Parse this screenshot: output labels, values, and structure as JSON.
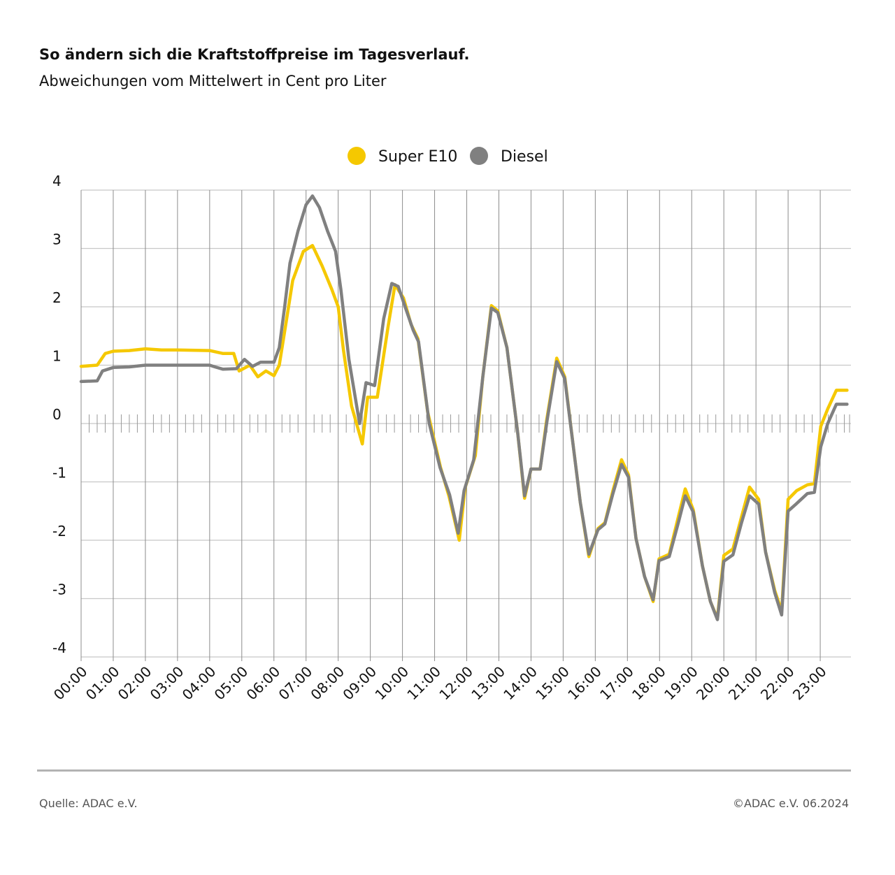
{
  "header": {
    "title": "So ändern sich die Kraftstoffpreise im Tagesverlauf.",
    "subtitle": "Abweichungen vom Mittelwert in Cent pro Liter"
  },
  "footer": {
    "source": "Quelle: ADAC e.V.",
    "copyright": "©ADAC e.V.  06.2024"
  },
  "chart_data": {
    "type": "line",
    "title": "So ändern sich die Kraftstoffpreise im Tagesverlauf.",
    "subtitle": "Abweichungen vom Mittelwert in Cent pro Liter",
    "ylim": [
      -4,
      4
    ],
    "y_ticks": [
      "4",
      "3",
      "2",
      "1",
      "0",
      "-1",
      "-2",
      "-3",
      "-4"
    ],
    "x_ticks": [
      "00:00",
      "01:00",
      "02:00",
      "03:00",
      "04:00",
      "05:00",
      "06:00",
      "07:00",
      "08:00",
      "09:00",
      "10:00",
      "11:00",
      "12:00",
      "13:00",
      "14:00",
      "15:00",
      "16:00",
      "17:00",
      "18:00",
      "19:00",
      "20:00",
      "21:00",
      "22:00",
      "23:00"
    ],
    "grid": true,
    "legend": "top-center",
    "series": [
      {
        "name": "Super E10",
        "color": "#f5c800",
        "points": [
          [
            "00:00",
            0.98
          ],
          [
            "00:30",
            1.0
          ],
          [
            "00:45",
            1.2
          ],
          [
            "01:00",
            1.24
          ],
          [
            "01:30",
            1.25
          ],
          [
            "02:00",
            1.28
          ],
          [
            "02:30",
            1.26
          ],
          [
            "03:00",
            1.26
          ],
          [
            "04:00",
            1.25
          ],
          [
            "04:25",
            1.2
          ],
          [
            "04:45",
            1.2
          ],
          [
            "04:55",
            0.9
          ],
          [
            "05:15",
            1.0
          ],
          [
            "05:30",
            0.8
          ],
          [
            "05:45",
            0.9
          ],
          [
            "06:00",
            0.82
          ],
          [
            "06:10",
            1.0
          ],
          [
            "06:23",
            1.75
          ],
          [
            "06:35",
            2.45
          ],
          [
            "06:55",
            2.95
          ],
          [
            "07:12",
            3.05
          ],
          [
            "07:30",
            2.7
          ],
          [
            "07:48",
            2.3
          ],
          [
            "08:00",
            2.0
          ],
          [
            "08:10",
            1.25
          ],
          [
            "08:25",
            0.3
          ],
          [
            "08:45",
            -0.35
          ],
          [
            "08:55",
            0.45
          ],
          [
            "09:13",
            0.45
          ],
          [
            "09:33",
            1.65
          ],
          [
            "09:46",
            2.38
          ],
          [
            "10:02",
            2.15
          ],
          [
            "10:16",
            1.7
          ],
          [
            "10:29",
            1.45
          ],
          [
            "10:47",
            0.2
          ],
          [
            "11:11",
            -0.75
          ],
          [
            "11:27",
            -1.25
          ],
          [
            "11:46",
            -2.0
          ],
          [
            "11:57",
            -1.1
          ],
          [
            "12:16",
            -0.55
          ],
          [
            "12:30",
            0.8
          ],
          [
            "12:46",
            2.02
          ],
          [
            "12:58",
            1.93
          ],
          [
            "13:15",
            1.3
          ],
          [
            "13:35",
            -0.15
          ],
          [
            "13:48",
            -1.28
          ],
          [
            "14:00",
            -0.78
          ],
          [
            "14:17",
            -0.78
          ],
          [
            "14:29",
            0.05
          ],
          [
            "14:48",
            1.12
          ],
          [
            "15:03",
            0.8
          ],
          [
            "15:19",
            -0.4
          ],
          [
            "15:32",
            -1.35
          ],
          [
            "15:48",
            -2.28
          ],
          [
            "16:05",
            -1.8
          ],
          [
            "16:18",
            -1.7
          ],
          [
            "16:33",
            -1.15
          ],
          [
            "16:49",
            -0.62
          ],
          [
            "17:02",
            -0.88
          ],
          [
            "17:16",
            -1.97
          ],
          [
            "17:32",
            -2.62
          ],
          [
            "17:48",
            -3.05
          ],
          [
            "17:59",
            -2.32
          ],
          [
            "18:18",
            -2.24
          ],
          [
            "18:35",
            -1.6
          ],
          [
            "18:48",
            -1.12
          ],
          [
            "19:03",
            -1.48
          ],
          [
            "19:20",
            -2.44
          ],
          [
            "19:35",
            -3.05
          ],
          [
            "19:48",
            -3.34
          ],
          [
            "20:00",
            -2.26
          ],
          [
            "20:17",
            -2.15
          ],
          [
            "20:33",
            -1.6
          ],
          [
            "20:48",
            -1.09
          ],
          [
            "21:05",
            -1.3
          ],
          [
            "21:18",
            -2.2
          ],
          [
            "21:35",
            -2.86
          ],
          [
            "21:48",
            -3.22
          ],
          [
            "22:00",
            -1.3
          ],
          [
            "22:16",
            -1.15
          ],
          [
            "22:36",
            -1.05
          ],
          [
            "22:49",
            -1.03
          ],
          [
            "23:01",
            -0.05
          ],
          [
            "23:14",
            0.25
          ],
          [
            "23:30",
            0.57
          ],
          [
            "23:50",
            0.57
          ]
        ]
      },
      {
        "name": "Diesel",
        "color": "#808080",
        "points": [
          [
            "00:00",
            0.72
          ],
          [
            "00:30",
            0.73
          ],
          [
            "00:40",
            0.9
          ],
          [
            "01:00",
            0.96
          ],
          [
            "01:30",
            0.97
          ],
          [
            "02:00",
            1.0
          ],
          [
            "03:00",
            1.0
          ],
          [
            "04:00",
            1.0
          ],
          [
            "04:10",
            0.97
          ],
          [
            "04:25",
            0.93
          ],
          [
            "04:50",
            0.94
          ],
          [
            "05:05",
            1.1
          ],
          [
            "05:20",
            0.98
          ],
          [
            "05:35",
            1.05
          ],
          [
            "06:00",
            1.05
          ],
          [
            "06:10",
            1.3
          ],
          [
            "06:20",
            2.0
          ],
          [
            "06:30",
            2.75
          ],
          [
            "06:45",
            3.3
          ],
          [
            "07:00",
            3.75
          ],
          [
            "07:12",
            3.9
          ],
          [
            "07:25",
            3.7
          ],
          [
            "07:40",
            3.3
          ],
          [
            "07:55",
            2.95
          ],
          [
            "08:05",
            2.3
          ],
          [
            "08:20",
            1.1
          ],
          [
            "08:40",
            0.0
          ],
          [
            "08:52",
            0.7
          ],
          [
            "09:08",
            0.65
          ],
          [
            "09:25",
            1.8
          ],
          [
            "09:40",
            2.4
          ],
          [
            "09:52",
            2.35
          ],
          [
            "10:05",
            2.0
          ],
          [
            "10:20",
            1.6
          ],
          [
            "10:30",
            1.4
          ],
          [
            "10:50",
            0.0
          ],
          [
            "11:10",
            -0.75
          ],
          [
            "11:28",
            -1.22
          ],
          [
            "11:44",
            -1.88
          ],
          [
            "11:55",
            -1.15
          ],
          [
            "12:13",
            -0.62
          ],
          [
            "12:30",
            0.8
          ],
          [
            "12:46",
            1.98
          ],
          [
            "12:58",
            1.9
          ],
          [
            "13:15",
            1.3
          ],
          [
            "13:35",
            -0.15
          ],
          [
            "13:48",
            -1.24
          ],
          [
            "14:00",
            -0.78
          ],
          [
            "14:17",
            -0.78
          ],
          [
            "14:30",
            0.05
          ],
          [
            "14:48",
            1.06
          ],
          [
            "15:03",
            0.77
          ],
          [
            "15:19",
            -0.4
          ],
          [
            "15:32",
            -1.35
          ],
          [
            "15:48",
            -2.24
          ],
          [
            "16:05",
            -1.82
          ],
          [
            "16:18",
            -1.72
          ],
          [
            "16:33",
            -1.2
          ],
          [
            "16:49",
            -0.7
          ],
          [
            "17:02",
            -0.92
          ],
          [
            "17:16",
            -1.97
          ],
          [
            "17:32",
            -2.62
          ],
          [
            "17:48",
            -3.02
          ],
          [
            "17:59",
            -2.35
          ],
          [
            "18:18",
            -2.28
          ],
          [
            "18:35",
            -1.7
          ],
          [
            "18:48",
            -1.24
          ],
          [
            "19:03",
            -1.52
          ],
          [
            "19:20",
            -2.44
          ],
          [
            "19:35",
            -3.05
          ],
          [
            "19:48",
            -3.36
          ],
          [
            "20:00",
            -2.36
          ],
          [
            "20:17",
            -2.25
          ],
          [
            "20:33",
            -1.7
          ],
          [
            "20:48",
            -1.24
          ],
          [
            "21:05",
            -1.38
          ],
          [
            "21:18",
            -2.2
          ],
          [
            "21:35",
            -2.9
          ],
          [
            "21:48",
            -3.28
          ],
          [
            "22:00",
            -1.5
          ],
          [
            "22:16",
            -1.37
          ],
          [
            "22:36",
            -1.2
          ],
          [
            "22:49",
            -1.18
          ],
          [
            "23:01",
            -0.4
          ],
          [
            "23:14",
            0.0
          ],
          [
            "23:30",
            0.33
          ],
          [
            "23:50",
            0.33
          ]
        ]
      }
    ]
  }
}
